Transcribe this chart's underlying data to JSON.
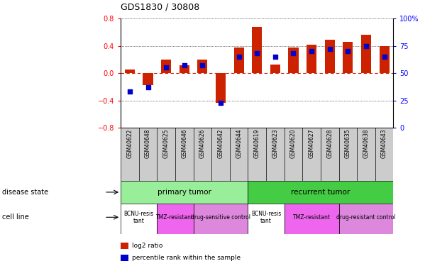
{
  "title": "GDS1830 / 30808",
  "samples": [
    "GSM40622",
    "GSM40648",
    "GSM40625",
    "GSM40646",
    "GSM40626",
    "GSM40642",
    "GSM40644",
    "GSM40619",
    "GSM40623",
    "GSM40620",
    "GSM40627",
    "GSM40628",
    "GSM40635",
    "GSM40638",
    "GSM40643"
  ],
  "log2_ratio": [
    0.05,
    -0.18,
    0.2,
    0.12,
    0.2,
    -0.44,
    0.38,
    0.68,
    0.13,
    0.38,
    0.42,
    0.49,
    0.46,
    0.56,
    0.4
  ],
  "percentile": [
    33,
    37,
    55,
    57,
    57,
    23,
    65,
    68,
    65,
    68,
    70,
    72,
    70,
    75,
    65
  ],
  "ylim": [
    -0.8,
    0.8
  ],
  "y2lim": [
    0,
    100
  ],
  "yticks": [
    -0.8,
    -0.4,
    0.0,
    0.4,
    0.8
  ],
  "y2ticks": [
    0,
    25,
    50,
    75,
    100
  ],
  "bar_color": "#cc2200",
  "dot_color": "#0000cc",
  "grid_color": "#000000",
  "dashed_zero_color": "#cc2200",
  "xticklabel_bg": "#cccccc",
  "disease_state_groups": [
    {
      "label": "primary tumor",
      "start": 0,
      "end": 7,
      "color": "#99ee99"
    },
    {
      "label": "recurrent tumor",
      "start": 7,
      "end": 15,
      "color": "#44cc44"
    }
  ],
  "cell_line_groups": [
    {
      "label": "BCNU-resis\ntant",
      "start": 0,
      "end": 2,
      "color": "#ffffff"
    },
    {
      "label": "TMZ-resistant",
      "start": 2,
      "end": 4,
      "color": "#ee66ee"
    },
    {
      "label": "drug-sensitive control",
      "start": 4,
      "end": 7,
      "color": "#dd88dd"
    },
    {
      "label": "BCNU-resis\ntant",
      "start": 7,
      "end": 9,
      "color": "#ffffff"
    },
    {
      "label": "TMZ-resistant",
      "start": 9,
      "end": 12,
      "color": "#ee66ee"
    },
    {
      "label": "drug-resistant control",
      "start": 12,
      "end": 15,
      "color": "#dd88dd"
    }
  ],
  "legend_items": [
    {
      "label": "log2 ratio",
      "color": "#cc2200"
    },
    {
      "label": "percentile rank within the sample",
      "color": "#0000cc"
    }
  ],
  "label_disease_state": "disease state",
  "label_cell_line": "cell line",
  "bar_width": 0.55
}
